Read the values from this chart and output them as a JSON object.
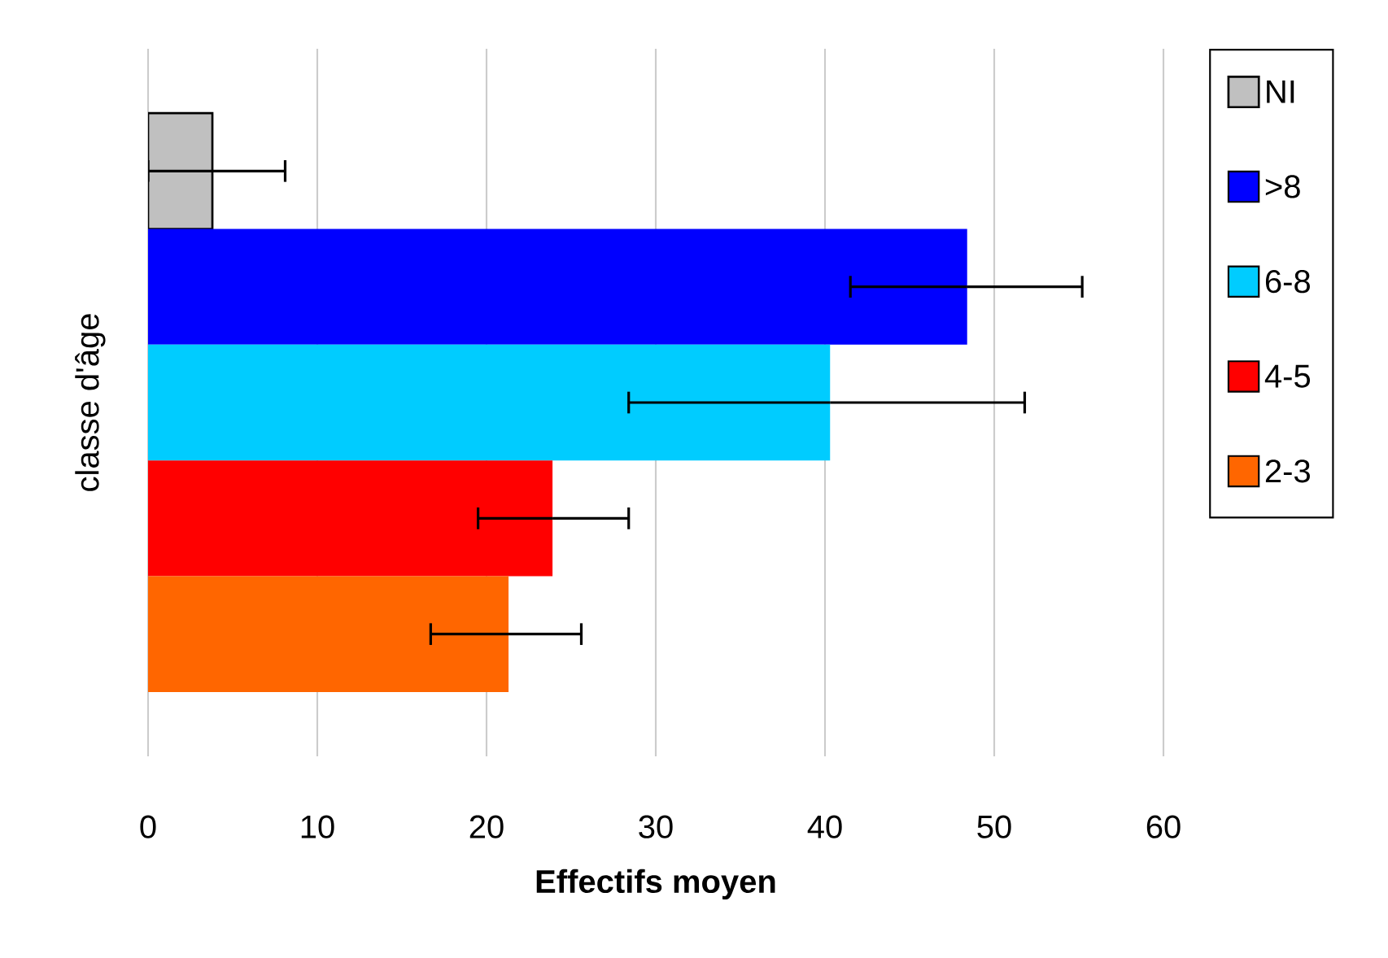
{
  "chart_data": {
    "type": "bar",
    "orientation": "horizontal",
    "xlabel": "Effectifs moyen",
    "ylabel": "classe d'âge",
    "categories": [
      null
    ],
    "series": [
      {
        "name": "NI",
        "color": "#c0c0c0",
        "values": [
          3.8
        ],
        "errors": [
          [
            0,
            8.1
          ]
        ]
      },
      {
        "name": ">8",
        "color": "#0000ff",
        "values": [
          48.4
        ],
        "errors": [
          [
            41.5,
            55.2
          ]
        ]
      },
      {
        "name": "6-8",
        "color": "#00ccff",
        "values": [
          40.3
        ],
        "errors": [
          [
            28.4,
            51.8
          ]
        ]
      },
      {
        "name": "4-5",
        "color": "#ff0000",
        "values": [
          23.9
        ],
        "errors": [
          [
            19.5,
            28.4
          ]
        ]
      },
      {
        "name": "2-3",
        "color": "#ff6600",
        "values": [
          21.3
        ],
        "errors": [
          [
            16.7,
            25.6
          ]
        ]
      }
    ],
    "xlim": [
      0,
      60
    ],
    "xticks": [
      0,
      10,
      20,
      30,
      40,
      50,
      60
    ],
    "grid": "x",
    "legend": "right"
  }
}
